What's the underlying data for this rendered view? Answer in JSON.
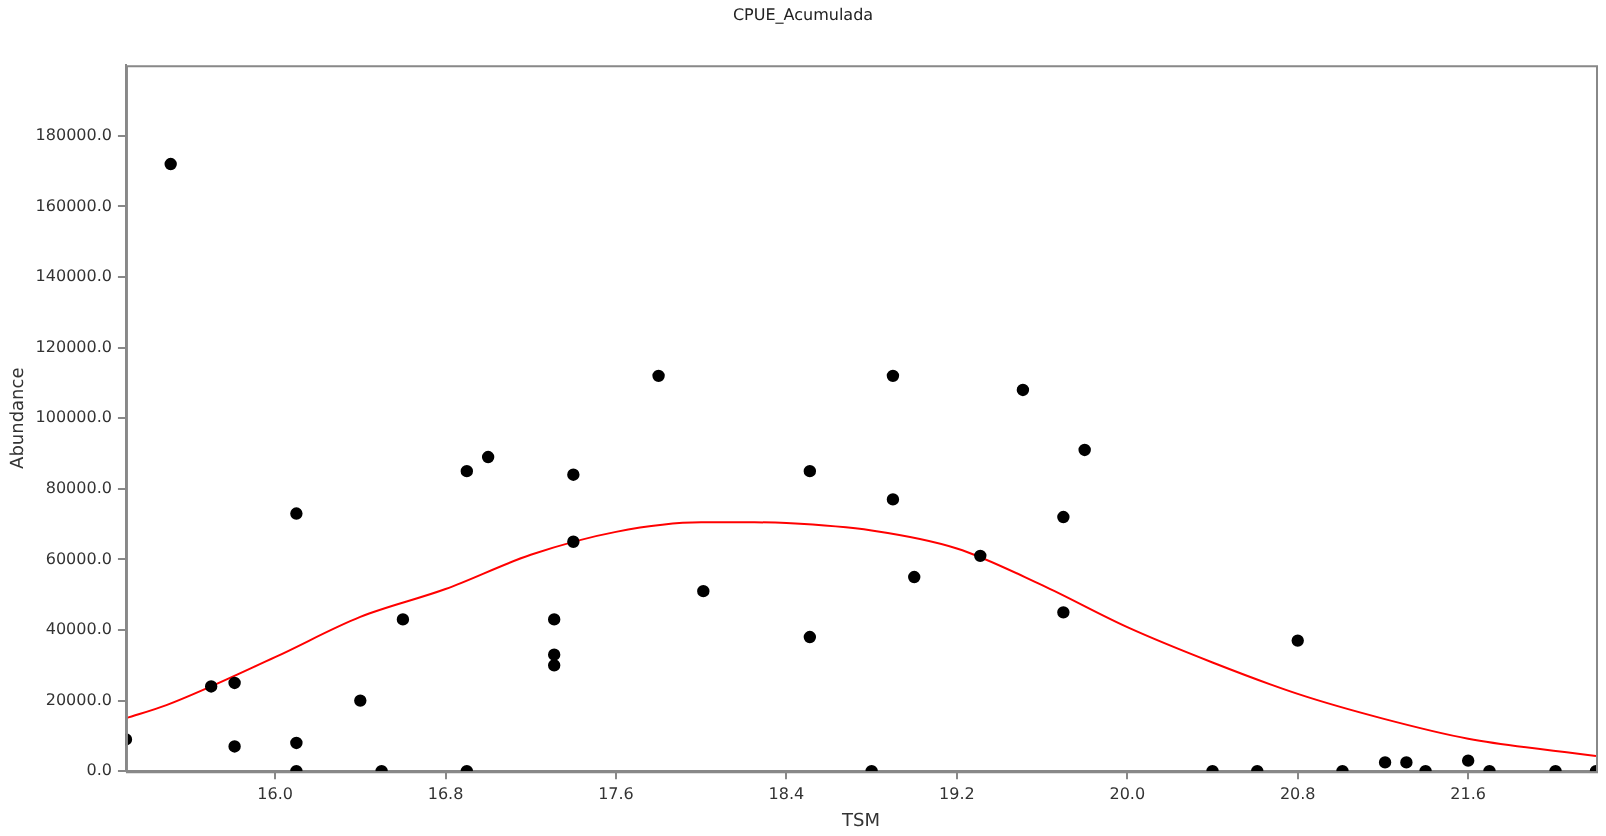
{
  "chart_data": {
    "type": "scatter",
    "title": "CPUE_Acumulada",
    "xlabel": "TSM",
    "ylabel": "Abundance",
    "xlim": [
      15.3,
      22.2
    ],
    "ylim": [
      0,
      200000
    ],
    "xticks": [
      {
        "value": 16,
        "label": "16.0"
      },
      {
        "value": 16.8,
        "label": "16.8"
      },
      {
        "value": 17.6,
        "label": "17.6"
      },
      {
        "value": 18.4,
        "label": "18.4"
      },
      {
        "value": 19.2,
        "label": "19.2"
      },
      {
        "value": 20,
        "label": "20.0"
      },
      {
        "value": 20.8,
        "label": "20.8"
      },
      {
        "value": 21.6,
        "label": "21.6"
      }
    ],
    "yticks": [
      {
        "value": 0,
        "label": "0.0"
      },
      {
        "value": 20000,
        "label": "20000.0"
      },
      {
        "value": 40000,
        "label": "40000.0"
      },
      {
        "value": 60000,
        "label": "60000.0"
      },
      {
        "value": 80000,
        "label": "80000.0"
      },
      {
        "value": 100000,
        "label": "100000.0"
      },
      {
        "value": 120000,
        "label": "120000.0"
      },
      {
        "value": 140000,
        "label": "140000.0"
      },
      {
        "value": 160000,
        "label": "160000.0"
      },
      {
        "value": 180000,
        "label": "180000.0"
      }
    ],
    "grid": false,
    "legend": false,
    "series": [
      {
        "type": "scatter",
        "color": "#000000",
        "marker": "circle",
        "x": [
          15.3,
          15.51,
          15.7,
          15.81,
          15.81,
          16.1,
          16.1,
          16.1,
          16.4,
          16.5,
          16.6,
          16.9,
          16.9,
          17.0,
          17.31,
          17.31,
          17.31,
          17.4,
          17.4,
          17.8,
          18.01,
          18.51,
          18.51,
          18.8,
          18.9,
          18.9,
          19.0,
          19.31,
          19.51,
          19.7,
          19.7,
          19.8,
          20.4,
          20.61,
          20.8,
          21.01,
          21.21,
          21.31,
          21.4,
          21.6,
          21.7,
          22.01,
          22.2
        ],
        "values": [
          9000,
          172000,
          24000,
          25000,
          7000,
          73000,
          8000,
          0,
          20000,
          0,
          43000,
          85000,
          0,
          89000,
          43000,
          33000,
          30000,
          84000,
          65000,
          112000,
          51000,
          85000,
          38000,
          0,
          112000,
          77000,
          55000,
          61000,
          108000,
          72000,
          45000,
          91000,
          0,
          0,
          37000,
          0,
          2500,
          2500,
          0,
          3000,
          0,
          0,
          0
        ]
      },
      {
        "type": "line",
        "color": "#ff0000",
        "marker": "none",
        "line_style": "solid",
        "x": [
          15.3,
          15.49,
          16.0,
          16.4,
          16.8,
          17.2,
          17.6,
          18.0,
          18.25,
          18.4,
          18.8,
          19.2,
          19.6,
          20.0,
          20.4,
          20.8,
          21.2,
          21.6,
          22.2
        ],
        "values": [
          15000,
          18700,
          32300,
          43700,
          51600,
          61300,
          67800,
          70500,
          70500,
          70300,
          68200,
          63100,
          52700,
          40800,
          30800,
          21900,
          14900,
          9200,
          4300
        ]
      }
    ]
  }
}
